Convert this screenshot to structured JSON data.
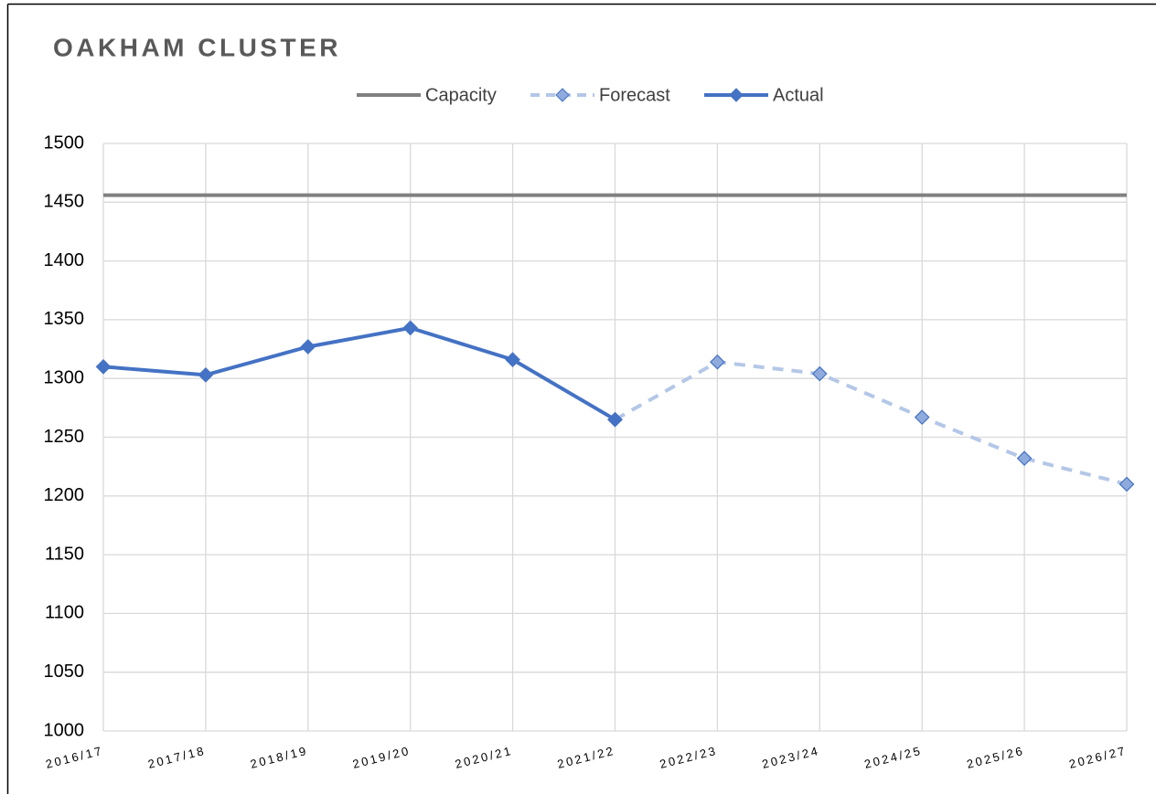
{
  "chart_data": {
    "type": "line",
    "title": "OAKHAM CLUSTER",
    "categories": [
      "2016/17",
      "2017/18",
      "2018/19",
      "2019/20",
      "2020/21",
      "2021/22",
      "2022/23",
      "2023/24",
      "2024/25",
      "2025/26",
      "2026/27"
    ],
    "series": [
      {
        "name": "Capacity",
        "color": "#808080",
        "dashed": false,
        "marker": false,
        "values": [
          1456,
          1456,
          1456,
          1456,
          1456,
          1456,
          1456,
          1456,
          1456,
          1456,
          1456
        ]
      },
      {
        "name": "Forecast",
        "color": "#b4c7e7",
        "marker_color": "#8faadc",
        "dashed": true,
        "marker": true,
        "values": [
          null,
          null,
          null,
          null,
          null,
          1265,
          1314,
          1304,
          1267,
          1232,
          1210
        ]
      },
      {
        "name": "Actual",
        "color": "#4472c4",
        "marker_color": "#4472c4",
        "dashed": false,
        "marker": true,
        "values": [
          1310,
          1303,
          1327,
          1343,
          1316,
          1265,
          null,
          null,
          null,
          null,
          null
        ]
      }
    ],
    "ylim": [
      1000,
      1500
    ],
    "yticks": [
      1000,
      1050,
      1100,
      1150,
      1200,
      1250,
      1300,
      1350,
      1400,
      1450,
      1500
    ],
    "grid": true,
    "legend": "top"
  }
}
